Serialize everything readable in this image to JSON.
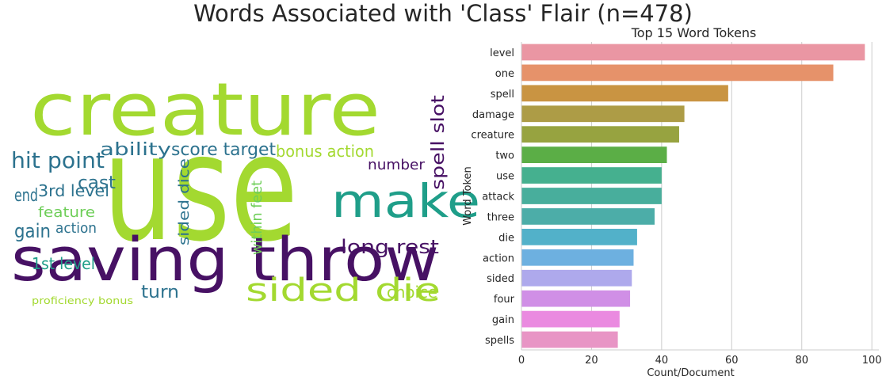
{
  "suptitle": "Words Associated with 'Class' Flair (n=478)",
  "wordcloud": {
    "words": [
      {
        "text": "use",
        "color": "#a3d930"
      },
      {
        "text": "creature",
        "color": "#a3d930"
      },
      {
        "text": "saving throw",
        "color": "#471164"
      },
      {
        "text": "make",
        "color": "#1f9e89"
      },
      {
        "text": "sided die",
        "color": "#a3d930"
      },
      {
        "text": "hit point",
        "color": "#2c728e"
      },
      {
        "text": "ability",
        "color": "#2c728e"
      },
      {
        "text": "score target",
        "color": "#2c728e"
      },
      {
        "text": "bonus action",
        "color": "#a3d930"
      },
      {
        "text": "spell slot",
        "color": "#471164"
      },
      {
        "text": "long rest",
        "color": "#471164"
      },
      {
        "text": "sided dice",
        "color": "#2c728e"
      },
      {
        "text": "within feet",
        "color": "#6ece58"
      },
      {
        "text": "gain",
        "color": "#2c728e"
      },
      {
        "text": "feature",
        "color": "#6ece58"
      },
      {
        "text": "cast",
        "color": "#2c728e"
      },
      {
        "text": "end",
        "color": "#2c728e"
      },
      {
        "text": "3rd level",
        "color": "#2c728e"
      },
      {
        "text": "action",
        "color": "#2c728e"
      },
      {
        "text": "1st level",
        "color": "#1f9e89"
      },
      {
        "text": "turn",
        "color": "#2c728e"
      },
      {
        "text": "choice",
        "color": "#a3d930"
      },
      {
        "text": "number",
        "color": "#471164"
      },
      {
        "text": "proficiency bonus",
        "color": "#a3d930"
      }
    ]
  },
  "chart_data": {
    "type": "bar",
    "orientation": "horizontal",
    "title": "Top 15 Word Tokens",
    "xlabel": "Count/Document",
    "ylabel": "Word Token",
    "xlim": [
      0,
      102
    ],
    "xticks": [
      0,
      20,
      40,
      60,
      80,
      100
    ],
    "grid": true,
    "categories": [
      "level",
      "one",
      "spell",
      "damage",
      "creature",
      "two",
      "use",
      "attack",
      "three",
      "die",
      "action",
      "sided",
      "four",
      "gain",
      "spells"
    ],
    "values": [
      98,
      89,
      59,
      46.5,
      45,
      41.5,
      40,
      40,
      38,
      33,
      32,
      31.5,
      31,
      28,
      27.5
    ],
    "colors": [
      "#ea96a3",
      "#e6926a",
      "#c99442",
      "#ad9c46",
      "#97a340",
      "#5bae46",
      "#45b08f",
      "#48ae9c",
      "#4cada8",
      "#52b1c9",
      "#6db0e0",
      "#aea9ec",
      "#d08fe6",
      "#ea8ae0",
      "#e895c5"
    ]
  }
}
